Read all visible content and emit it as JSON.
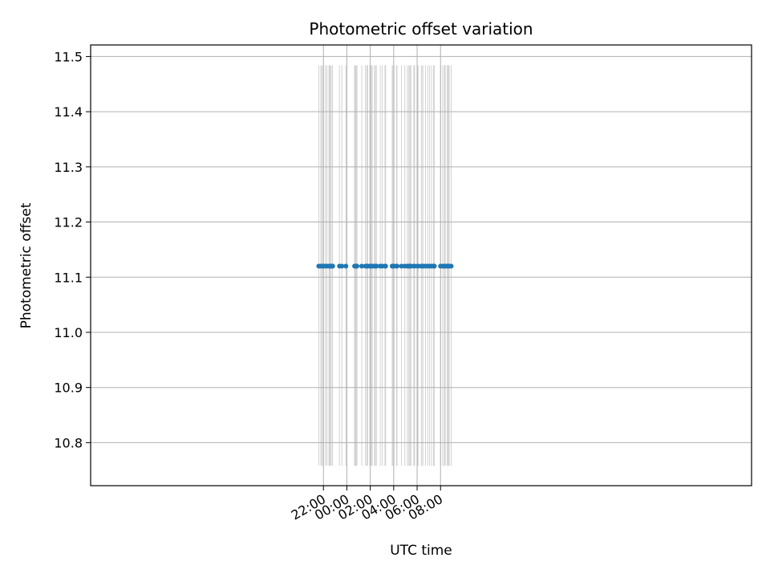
{
  "chart_data": {
    "type": "scatter",
    "title": "Photometric offset variation",
    "xlabel": "UTC time",
    "ylabel": "Photometric offset",
    "x_unit": "hours relative to 00:00 UTC",
    "xlim": [
      -21.88,
      34.56
    ],
    "ylim": [
      10.722,
      11.521
    ],
    "yticks": [
      "10.8",
      "10.9",
      "11.0",
      "11.1",
      "11.2",
      "11.3",
      "11.4",
      "11.5"
    ],
    "ytick_values": [
      10.8,
      10.9,
      11.0,
      11.1,
      11.2,
      11.3,
      11.4,
      11.5
    ],
    "xticks": [
      "22:00",
      "00:00",
      "02:00",
      "04:00",
      "06:00",
      "08:00"
    ],
    "xtick_values": [
      -2,
      0,
      2,
      4,
      6,
      8
    ],
    "grid": true,
    "colors": {
      "points": "#1f77b4",
      "bands": "#d3d3d3",
      "grid": "#b0b0b0"
    },
    "band_range": [
      10.758,
      11.484
    ],
    "bands": [
      [
        -2.43,
        -2.36
      ],
      [
        -2.26,
        -2.19
      ],
      [
        -2.16,
        -2.08
      ],
      [
        -2.04,
        -1.97
      ],
      [
        -1.86,
        -1.79
      ],
      [
        -1.74,
        -1.67
      ],
      [
        -1.56,
        -1.35
      ],
      [
        -1.29,
        -1.19
      ],
      [
        -0.67,
        -0.6
      ],
      [
        -0.46,
        -0.39
      ],
      [
        -0.12,
        -0.05
      ],
      [
        0.62,
        0.9
      ],
      [
        1.24,
        1.31
      ],
      [
        1.55,
        1.62
      ],
      [
        1.67,
        1.74
      ],
      [
        1.71,
        1.81
      ],
      [
        1.93,
        2.0
      ],
      [
        2.05,
        2.13
      ],
      [
        2.13,
        2.2
      ],
      [
        2.33,
        2.44
      ],
      [
        2.47,
        2.56
      ],
      [
        2.82,
        2.89
      ],
      [
        2.99,
        3.06
      ],
      [
        3.22,
        3.35
      ],
      [
        3.84,
        3.94
      ],
      [
        3.97,
        4.06
      ],
      [
        4.2,
        4.27
      ],
      [
        4.25,
        4.32
      ],
      [
        4.63,
        4.7
      ],
      [
        4.91,
        4.98
      ],
      [
        5.13,
        5.2
      ],
      [
        5.26,
        5.36
      ],
      [
        5.39,
        5.51
      ],
      [
        5.68,
        5.82
      ],
      [
        6.0,
        6.12
      ],
      [
        6.33,
        6.4
      ],
      [
        6.44,
        6.53
      ],
      [
        6.68,
        6.75
      ],
      [
        6.87,
        6.94
      ],
      [
        7.03,
        7.1
      ],
      [
        7.2,
        7.27
      ],
      [
        7.37,
        7.5
      ],
      [
        7.97,
        8.04
      ],
      [
        8.15,
        8.22
      ],
      [
        8.29,
        8.44
      ],
      [
        8.54,
        8.7
      ],
      [
        8.71,
        8.78
      ],
      [
        8.88,
        8.95
      ]
    ],
    "series": [
      {
        "x": [
          -2.4,
          -2.23,
          -2.12,
          -2.0,
          -1.83,
          -1.71,
          -1.52,
          -1.47,
          -1.43,
          -1.38,
          -1.25,
          -1.21,
          -0.63,
          -0.42,
          -0.08,
          0.66,
          0.7,
          0.74,
          0.78,
          0.82,
          0.86,
          1.27,
          1.59,
          1.71,
          1.77,
          1.96,
          2.09,
          2.17,
          2.37,
          2.41,
          2.5,
          2.53,
          2.85,
          3.02,
          3.26,
          3.31,
          3.87,
          3.91,
          4.01,
          4.23,
          4.29,
          4.66,
          4.94,
          5.16,
          5.29,
          5.33,
          5.42,
          5.46,
          5.71,
          5.78,
          6.03,
          6.09,
          6.36,
          6.47,
          6.51,
          6.71,
          6.9,
          7.06,
          7.23,
          7.4,
          7.44,
          7.47,
          8.0,
          8.18,
          8.32,
          8.4,
          8.57,
          8.61,
          8.66,
          8.75,
          8.91
        ],
        "y": 11.12
      }
    ]
  }
}
